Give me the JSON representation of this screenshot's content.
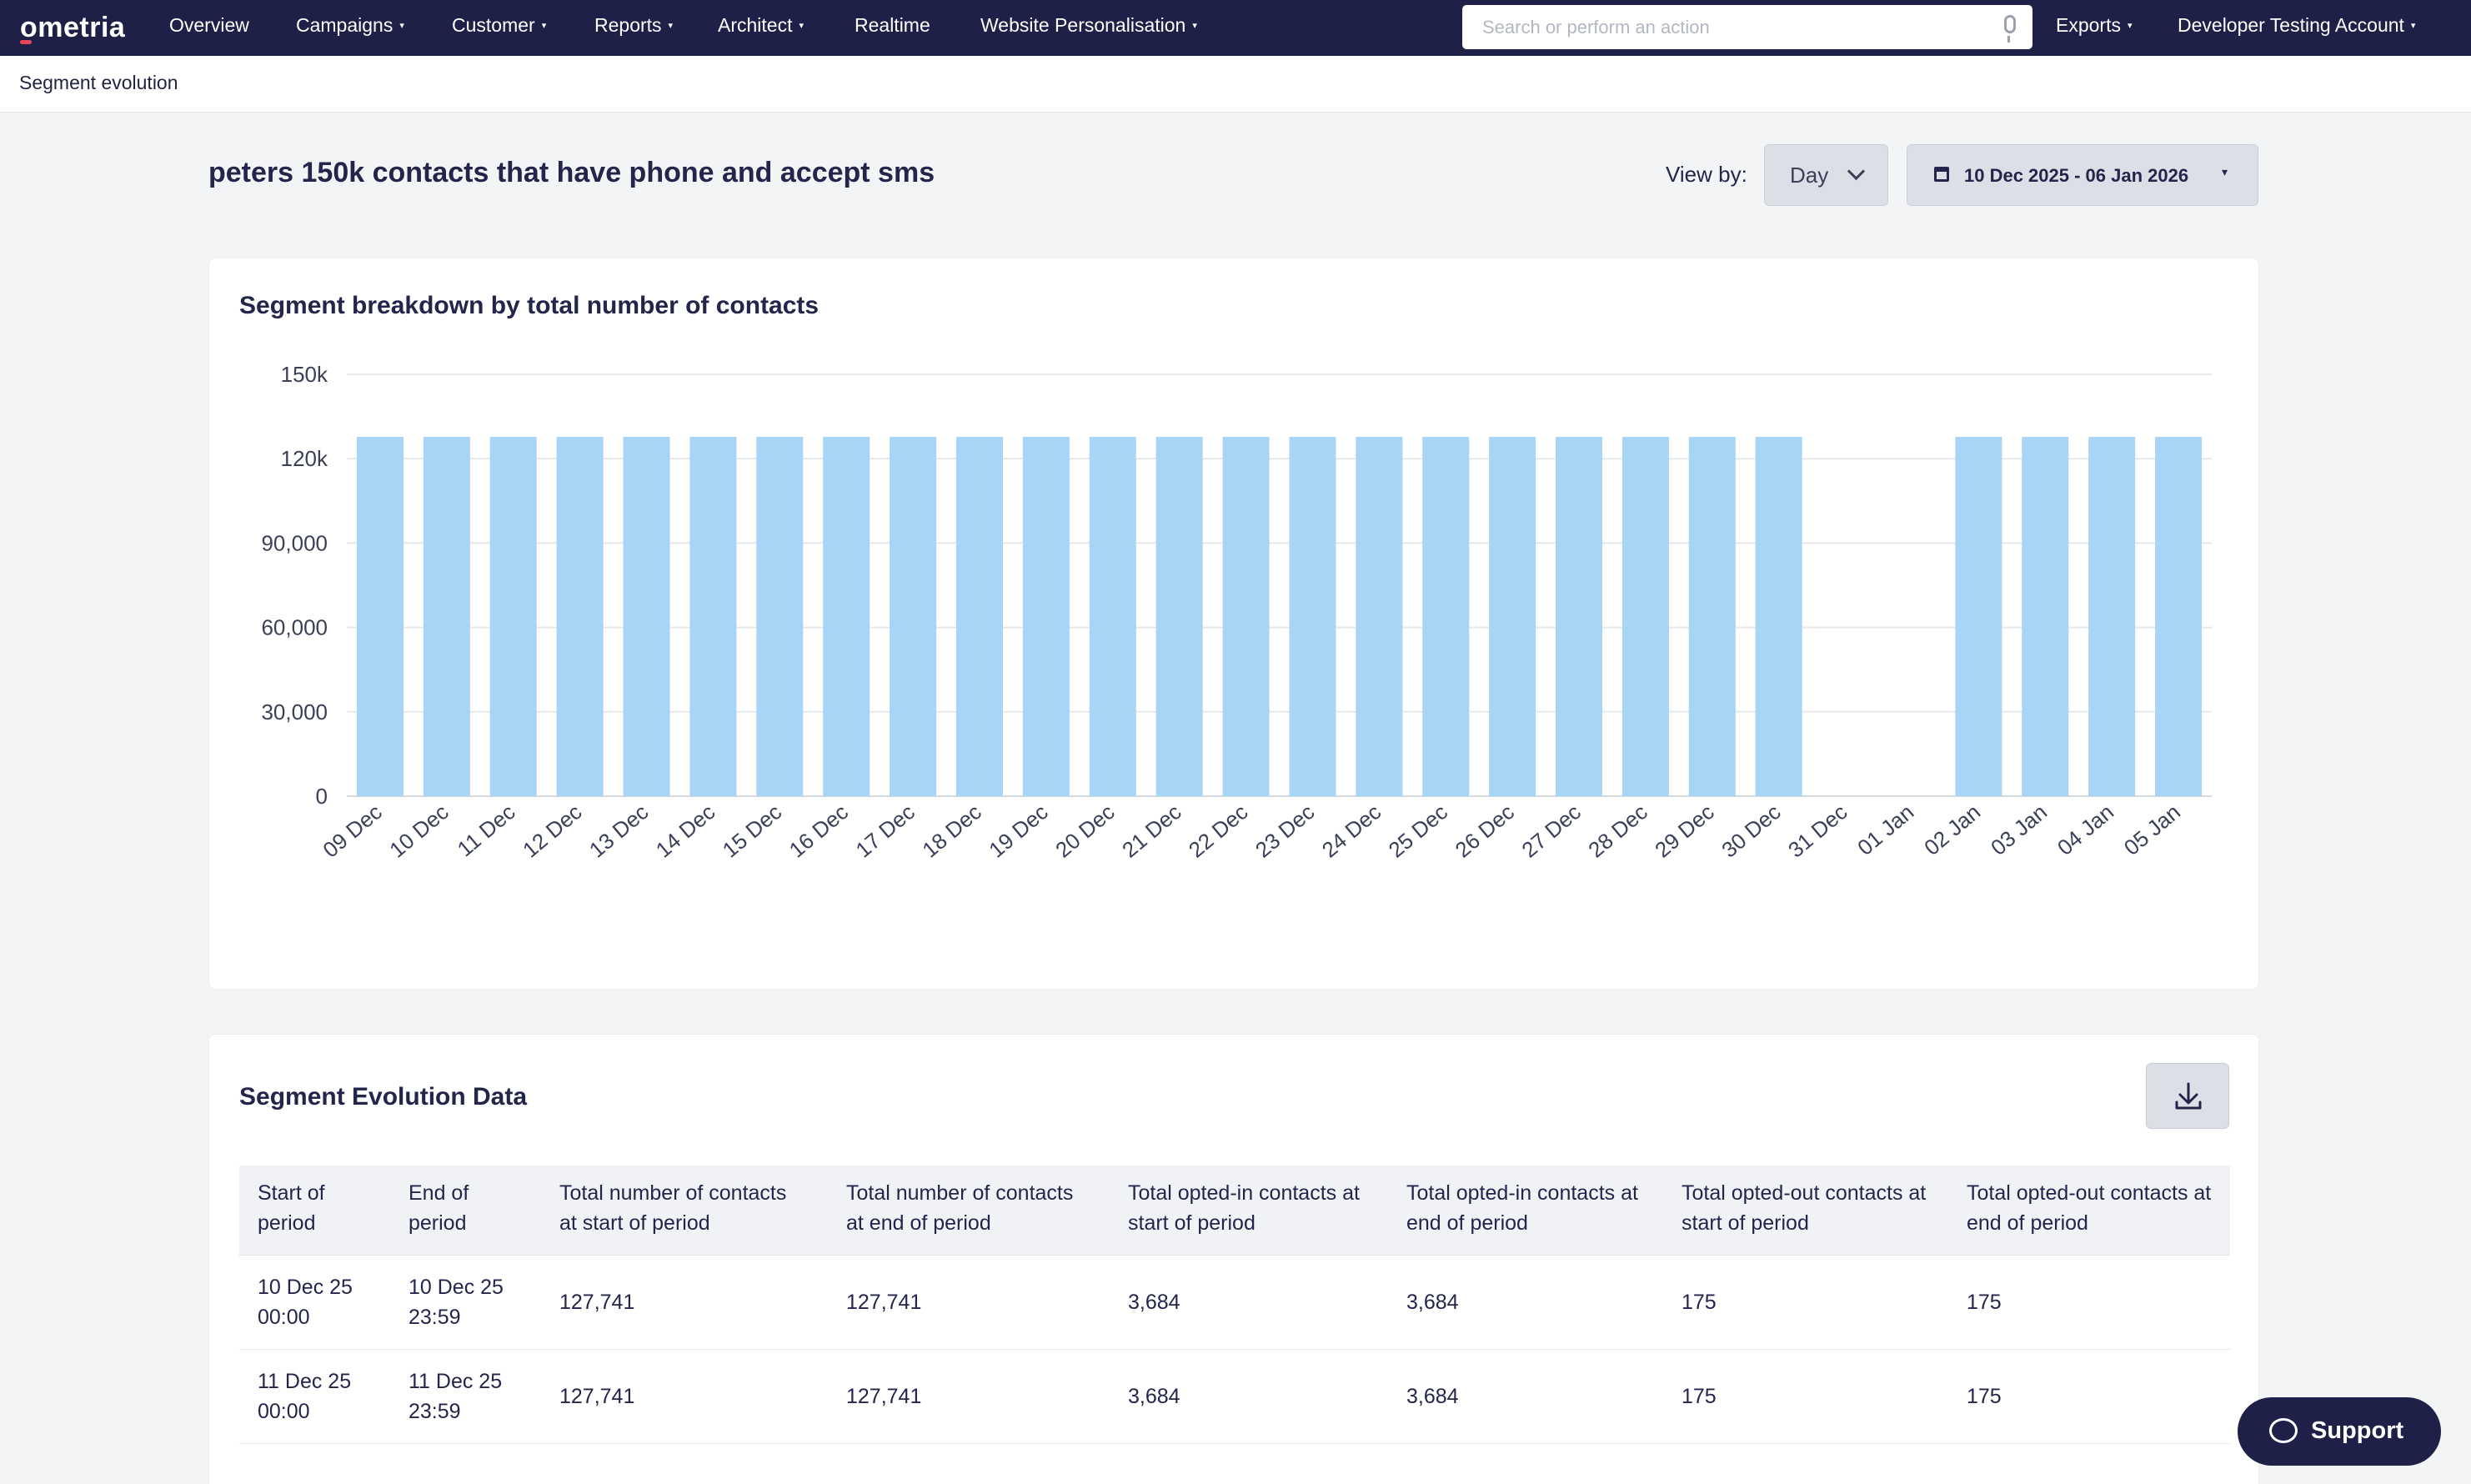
{
  "nav": {
    "logo": "ometria",
    "items": [
      {
        "label": "Overview",
        "caret": false
      },
      {
        "label": "Campaigns",
        "caret": true
      },
      {
        "label": "Customer",
        "caret": true
      },
      {
        "label": "Reports",
        "caret": true
      },
      {
        "label": "Architect",
        "caret": true
      },
      {
        "label": "Realtime",
        "caret": false
      },
      {
        "label": "Website Personalisation",
        "caret": true
      }
    ],
    "search_placeholder": "Search or perform an action",
    "exports_label": "Exports",
    "account_label": "Developer Testing Account"
  },
  "breadcrumb": "Segment evolution",
  "page": {
    "title": "peters 150k contacts that have phone and accept sms",
    "view_by_label": "View by:",
    "view_by_value": "Day",
    "date_range": "10 Dec 2025 - 06 Jan 2026"
  },
  "chart_card": {
    "title": "Segment breakdown by total number of contacts"
  },
  "chart_data": {
    "type": "bar",
    "title": "Segment breakdown by total number of contacts",
    "categories": [
      "09 Dec",
      "10 Dec",
      "11 Dec",
      "12 Dec",
      "13 Dec",
      "14 Dec",
      "15 Dec",
      "16 Dec",
      "17 Dec",
      "18 Dec",
      "19 Dec",
      "20 Dec",
      "21 Dec",
      "22 Dec",
      "23 Dec",
      "24 Dec",
      "25 Dec",
      "26 Dec",
      "27 Dec",
      "28 Dec",
      "29 Dec",
      "30 Dec",
      "31 Dec",
      "01 Jan",
      "02 Jan",
      "03 Jan",
      "04 Jan",
      "05 Jan"
    ],
    "values": [
      127741,
      127741,
      127741,
      127741,
      127741,
      127741,
      127741,
      127741,
      127741,
      127741,
      127741,
      127741,
      127741,
      127741,
      127741,
      127741,
      127741,
      127741,
      127741,
      127741,
      127741,
      127741,
      0,
      0,
      127741,
      127741,
      127741,
      127741
    ],
    "yticks": [
      {
        "value": 0,
        "label": "0"
      },
      {
        "value": 30000,
        "label": "30,000"
      },
      {
        "value": 60000,
        "label": "60,000"
      },
      {
        "value": 90000,
        "label": "90,000"
      },
      {
        "value": 120000,
        "label": "120k"
      },
      {
        "value": 150000,
        "label": "150k"
      }
    ],
    "ylim": [
      0,
      150000
    ],
    "grid": true,
    "bar_color": "#a8d4f5"
  },
  "table_card": {
    "title": "Segment Evolution Data",
    "columns": [
      "Start of period",
      "End of period",
      "Total number of contacts at start of period",
      "Total number of contacts at end of period",
      "Total opted-in contacts at start of period",
      "Total opted-in contacts at end of period",
      "Total opted-out contacts at start of period",
      "Total opted-out contacts at end of period"
    ],
    "rows": [
      [
        "10 Dec 25 00:00",
        "10 Dec 25 23:59",
        "127,741",
        "127,741",
        "3,684",
        "3,684",
        "175",
        "175"
      ],
      [
        "11 Dec 25 00:00",
        "11 Dec 25 23:59",
        "127,741",
        "127,741",
        "3,684",
        "3,684",
        "175",
        "175"
      ]
    ]
  },
  "support_label": "Support",
  "colors": {
    "nav_bg": "#1e2047",
    "bar": "#a8d4f5",
    "page_bg": "#f3f4f6"
  }
}
